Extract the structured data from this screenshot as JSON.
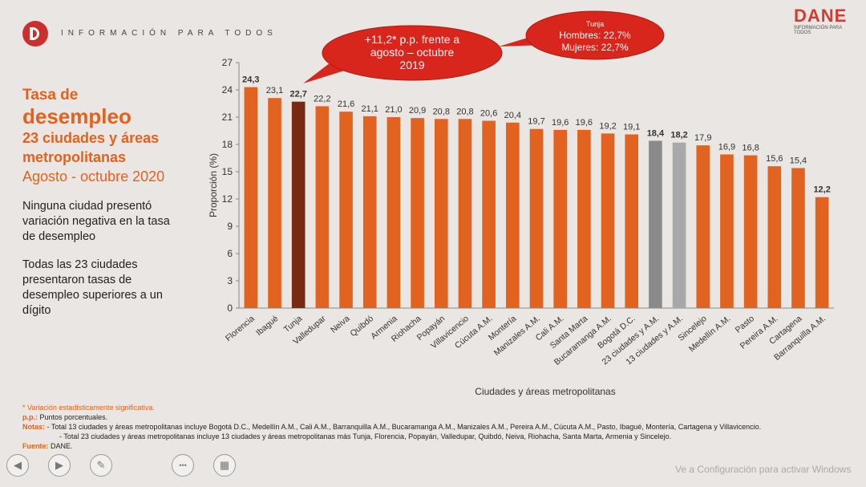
{
  "header": {
    "tagline": "INFORMACIÓN PARA TODOS",
    "brand": "DANE",
    "brand_sub": "INFORMACIÓN PARA TODOS",
    "brand_color": "#d43b35"
  },
  "left_panel": {
    "title_line1": "Tasa de",
    "title_line2": "desempleo",
    "title_line3": "23 ciudades y áreas metropolitanas",
    "title_line4": "Agosto - octubre 2020",
    "note1": "Ninguna ciudad presentó variación negativa en la tasa de desempleo",
    "note2": "Todas las 23 ciudades presentaron tasas de desempleo superiores a un dígito"
  },
  "chart_data": {
    "type": "bar",
    "categories": [
      "Florencia",
      "Ibagué",
      "Tunja",
      "Valledupar",
      "Neiva",
      "Quibdó",
      "Armenia",
      "Riohacha",
      "Popayán",
      "Villavicencio",
      "Cúcuta A.M.",
      "Montería",
      "Manizales A.M.",
      "Cali A.M.",
      "Santa Marta",
      "Bucaramanga A.M.",
      "Bogotá D.C.",
      "23 ciudades y A.M.",
      "13 ciudades y A.M.",
      "Sincelejo",
      "Medellín A.M.",
      "Pasto",
      "Pereira A.M.",
      "Cartagena",
      "Barranquilla A.M."
    ],
    "values": [
      24.3,
      23.1,
      22.7,
      22.2,
      21.6,
      21.1,
      21.0,
      20.9,
      20.8,
      20.8,
      20.6,
      20.4,
      19.7,
      19.6,
      19.6,
      19.2,
      19.1,
      18.4,
      18.2,
      17.9,
      16.9,
      16.8,
      15.6,
      15.4,
      12.2
    ],
    "value_labels": [
      "24,3",
      "23,1",
      "22,7",
      "22,2",
      "21,6",
      "21,1",
      "21,0",
      "20,9",
      "20,8",
      "20,8",
      "20,6",
      "20,4",
      "19,7",
      "19,6",
      "19,6",
      "19,2",
      "19,1",
      "18,4",
      "18,2",
      "17,9",
      "16,9",
      "16,8",
      "15,6",
      "15,4",
      "12,2"
    ],
    "bold_labels": [
      "Florencia",
      "Tunja",
      "23 ciudades y A.M.",
      "13 ciudades y A.M.",
      "Barranquilla A.M."
    ],
    "bar_colors": [
      "#e2621f",
      "#e2621f",
      "#7a2a12",
      "#e2621f",
      "#e2621f",
      "#e2621f",
      "#e2621f",
      "#e2621f",
      "#e2621f",
      "#e2621f",
      "#e2621f",
      "#e2621f",
      "#e2621f",
      "#e2621f",
      "#e2621f",
      "#e2621f",
      "#e2621f",
      "#8a8a8a",
      "#a8a8a8",
      "#e2621f",
      "#e2621f",
      "#e2621f",
      "#e2621f",
      "#e2621f",
      "#e2621f"
    ],
    "ylabel": "Proporción (%)",
    "xlabel": "Ciudades y áreas metropolitanas",
    "ylim": [
      0,
      27
    ],
    "yticks": [
      0,
      3,
      6,
      9,
      12,
      15,
      18,
      21,
      24,
      27
    ],
    "grid": false,
    "annotations": {
      "callout_main": [
        "+11,2* p.p. frente a",
        "agosto – octubre",
        "2019"
      ],
      "callout_tunja": [
        "Tunja",
        "Hombres: 22,7%",
        "Mujeres: 22,7%"
      ],
      "callout_color": "#d9261c"
    }
  },
  "footer": {
    "star_note": "* Variación estadísticamente significativa.",
    "pp_label": "p.p.:",
    "pp_note": "Puntos porcentuales.",
    "notas_label": "Notas:",
    "nota1": "- Total 13 ciudades y áreas metropolitanas incluye Bogotá D.C., Medellín A.M., Cali A.M., Barranquilla A.M., Bucaramanga A.M., Manizales A.M., Pereira A.M., Cúcuta A.M., Pasto, Ibagué, Montería, Cartagena y Villavicencio.",
    "nota2": "- Total 23 ciudades y áreas metropolitanas incluye 13 ciudades y áreas metropolitanas más Tunja, Florencia, Popayán, Valledupar, Quibdó, Neiva, Riohacha, Santa Marta, Armenia y Sincelejo.",
    "fuente_label": "Fuente:",
    "fuente": "DANE."
  },
  "watermark": "Ve a Configuración para activar Windows",
  "controls": [
    {
      "name": "prev-icon",
      "glyph": "◀"
    },
    {
      "name": "next-icon",
      "glyph": "▶"
    },
    {
      "name": "pen-icon",
      "glyph": "✎"
    },
    {
      "name": "more-icon",
      "glyph": "•••"
    },
    {
      "name": "slides-icon",
      "glyph": "▦"
    }
  ]
}
